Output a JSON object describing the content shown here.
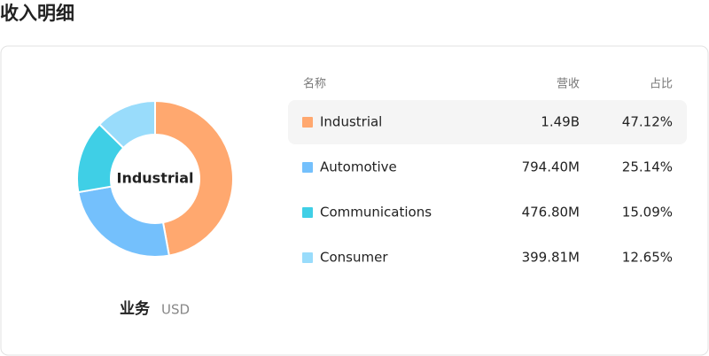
{
  "chart_data": {
    "type": "pie",
    "title": "收入明细",
    "axis_label": "业务",
    "unit": "USD",
    "columns": [
      "名称",
      "营收",
      "占比"
    ],
    "categories": [
      "Industrial",
      "Automotive",
      "Communications",
      "Consumer"
    ],
    "revenue_labels": [
      "1.49B",
      "794.40M",
      "476.80M",
      "399.81M"
    ],
    "values": [
      47.12,
      25.14,
      15.09,
      12.65
    ],
    "value_labels": [
      "47.12%",
      "25.14%",
      "15.09%",
      "12.65%"
    ],
    "colors": [
      "#ffa86f",
      "#74c0fc",
      "#3fcfe6",
      "#99dcfb"
    ],
    "selected": 0
  }
}
